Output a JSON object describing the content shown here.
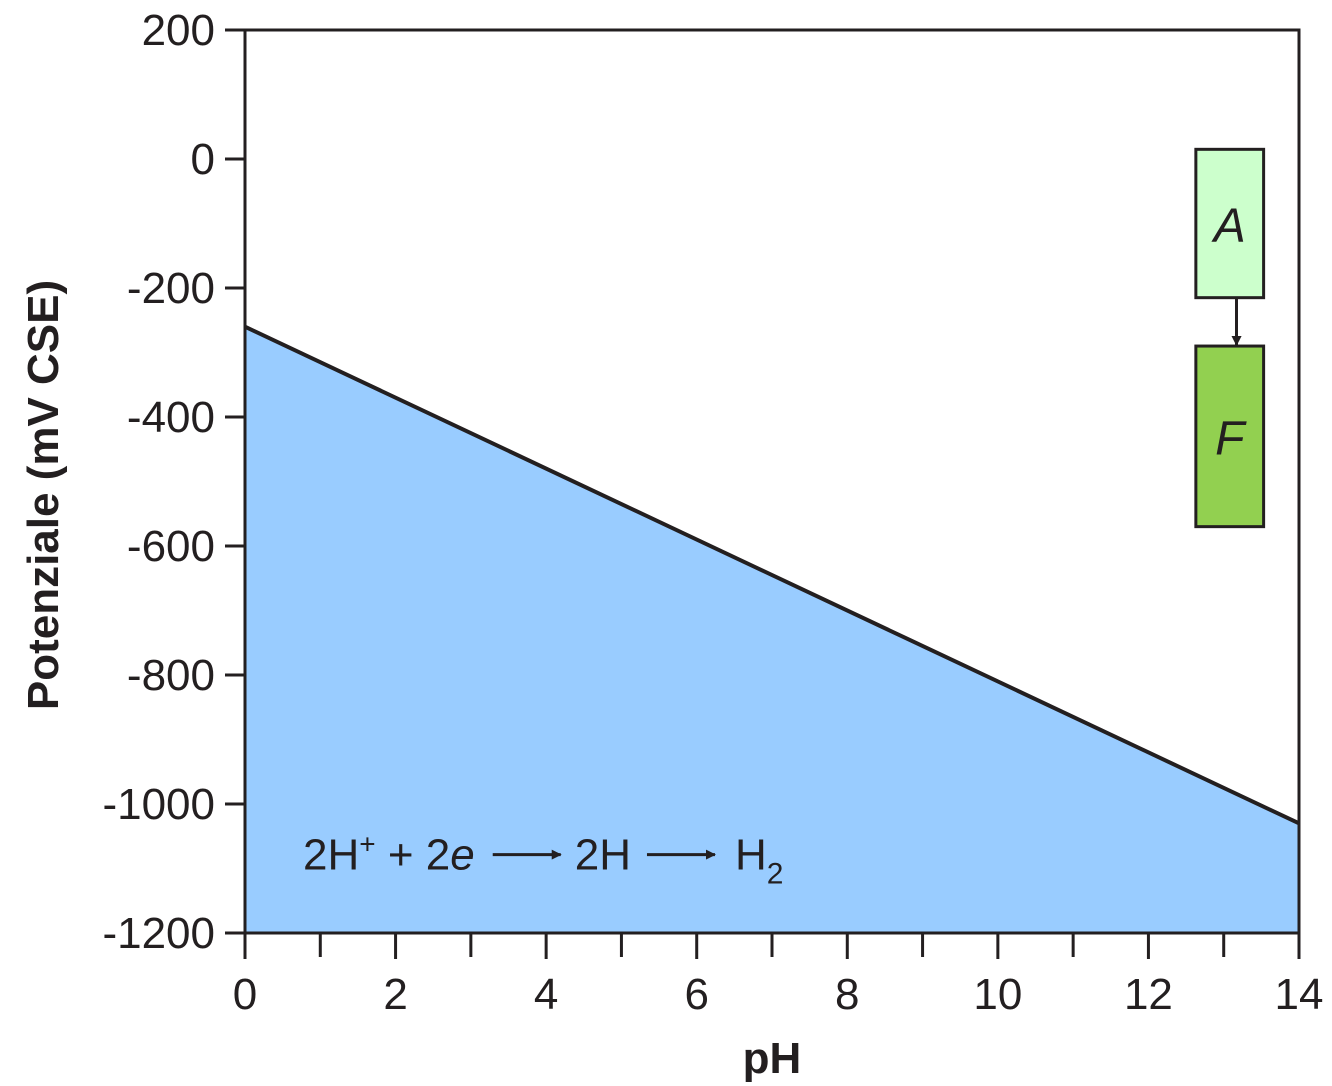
{
  "chart_data": {
    "type": "area",
    "xlabel": "pH",
    "ylabel": "Potenziale (mV CSE)",
    "xlim": [
      0,
      14
    ],
    "ylim": [
      -1200,
      200
    ],
    "x_major_ticks": [
      0,
      2,
      4,
      6,
      8,
      10,
      12,
      14
    ],
    "x_minor_ticks": [
      1,
      3,
      5,
      7,
      9,
      11,
      13
    ],
    "y_ticks": [
      200,
      0,
      -200,
      -400,
      -600,
      -800,
      -1000,
      -1200
    ],
    "x_tick_labels": [
      "0",
      "2",
      "4",
      "6",
      "8",
      "10",
      "12",
      "14"
    ],
    "y_tick_labels": [
      "200",
      "0",
      "-200",
      "-400",
      "-600",
      "-800",
      "-1000",
      "-1200"
    ],
    "grid": false,
    "series": [
      {
        "x": [
          0,
          14
        ],
        "y": [
          -260,
          -1030
        ],
        "fill_below": true,
        "fill_color": "#99ccff",
        "line_color": "#231f20"
      }
    ],
    "annotations": {
      "reaction": {
        "prefix": "2H",
        "superscript": "+",
        "middle": " + 2",
        "electron": "e",
        "product1": "2H",
        "product2": "H",
        "subscript": "2",
        "x": 4,
        "y": -1080
      },
      "boxes": [
        {
          "label": "A",
          "x_range": [
            12.63,
            13.53
          ],
          "y_range": [
            -215,
            15
          ],
          "color": "#ccffcc"
        },
        {
          "label": "F",
          "x_range": [
            12.63,
            13.53
          ],
          "y_range": [
            -570,
            -290
          ],
          "color": "#92d050"
        }
      ]
    }
  }
}
